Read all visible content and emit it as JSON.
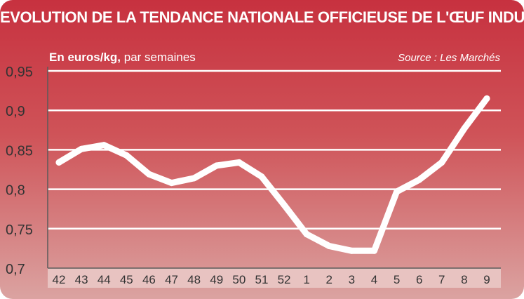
{
  "chart_data": {
    "type": "line",
    "title": "EVOLUTION DE LA TENDANCE NATIONALE OFFICIEUSE DE L'ŒUF INDUSTRIE",
    "unit_bold": "En euros/kg,",
    "unit_rest": " par semaines",
    "source": "Source : Les Marchés",
    "categories": [
      "42",
      "43",
      "44",
      "45",
      "46",
      "47",
      "48",
      "49",
      "50",
      "51",
      "52",
      "1",
      "2",
      "3",
      "4",
      "5",
      "6",
      "7",
      "8",
      "9"
    ],
    "values": [
      0.834,
      0.851,
      0.856,
      0.843,
      0.819,
      0.808,
      0.814,
      0.83,
      0.834,
      0.816,
      0.78,
      0.743,
      0.728,
      0.722,
      0.722,
      0.797,
      0.812,
      0.834,
      0.877,
      0.915
    ],
    "y_ticks": [
      "0,95",
      "0,9",
      "0,85",
      "0,8",
      "0,75",
      "0,7"
    ],
    "y_tick_values": [
      0.95,
      0.9,
      0.85,
      0.8,
      0.75,
      0.7
    ],
    "ylim": [
      0.7,
      0.95
    ],
    "grid": true,
    "colors": {
      "line": "#ffffff",
      "grid": "#ffffff",
      "axis": "#5a5a5a",
      "tick_text": "#333333",
      "background_top": "#c7313f",
      "background_bottom": "#dba3a1"
    }
  }
}
